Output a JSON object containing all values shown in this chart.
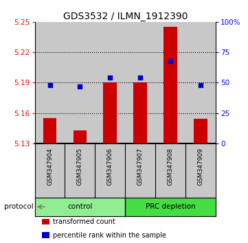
{
  "title": "GDS3532 / ILMN_1912390",
  "samples": [
    "GSM347904",
    "GSM347905",
    "GSM347906",
    "GSM347907",
    "GSM347908",
    "GSM347909"
  ],
  "red_values": [
    5.155,
    5.143,
    5.19,
    5.19,
    5.245,
    5.154
  ],
  "blue_values": [
    48,
    47,
    54,
    54,
    68,
    48
  ],
  "bar_baseline": 5.13,
  "ylim_left": [
    5.13,
    5.25
  ],
  "ylim_right": [
    0,
    100
  ],
  "yticks_left": [
    5.13,
    5.16,
    5.19,
    5.22,
    5.25
  ],
  "yticks_right": [
    0,
    25,
    50,
    75,
    100
  ],
  "ytick_labels_left": [
    "5.13",
    "5.16",
    "5.19",
    "5.22",
    "5.25"
  ],
  "ytick_labels_right": [
    "0",
    "25",
    "50",
    "75",
    "100%"
  ],
  "group_bg_color": "#C8C8C8",
  "bar_color": "#CC0000",
  "dot_color": "#0000CC",
  "control_color": "#90EE90",
  "prc_color": "#44DD44",
  "protocol_label": "protocol",
  "legend": [
    {
      "color": "#CC0000",
      "label": "transformed count"
    },
    {
      "color": "#0000CC",
      "label": "percentile rank within the sample"
    }
  ],
  "title_fontsize": 10,
  "tick_fontsize": 7.5,
  "bar_width": 0.45,
  "dot_size": 22
}
